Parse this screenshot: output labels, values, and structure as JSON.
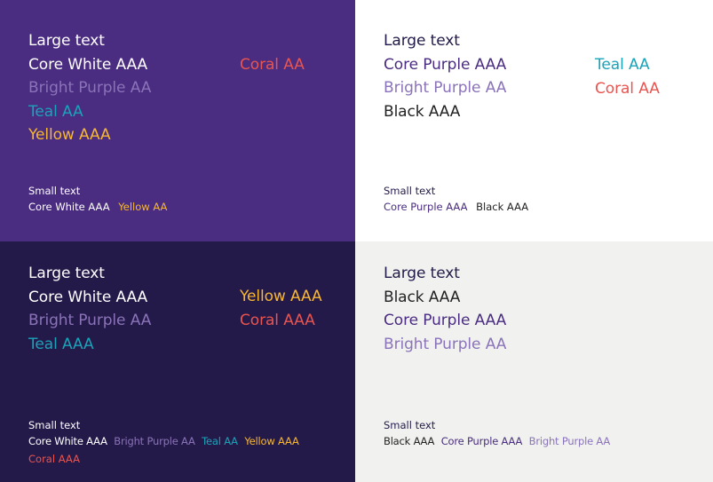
{
  "colors": {
    "core_purple": "#4a2c80",
    "dark_navy": "#241a4a",
    "white": "#ffffff",
    "light_grey": "#f1f2f0",
    "bright_purple": "#8a73b8",
    "teal": "#1aa3b8",
    "yellow": "#f7b733",
    "coral": "#e85550",
    "black": "#222222"
  },
  "panels": [
    {
      "large_heading": "Large text",
      "large_items": [
        "Core White AAA",
        "Bright Purple AA",
        "Teal AA",
        "Yellow AAA"
      ],
      "large_right": [
        "Coral AA"
      ],
      "small_heading": "Small text",
      "small_items": [
        "Core White AAA",
        "Yellow AA"
      ]
    },
    {
      "large_heading": "Large text",
      "large_items": [
        "Core Purple AAA",
        "Bright Purple AA",
        "Black AAA"
      ],
      "large_right": [
        "Teal AA",
        "Coral AA"
      ],
      "small_heading": "Small text",
      "small_items": [
        "Core Purple AAA",
        "Black AAA"
      ]
    },
    {
      "large_heading": "Large text",
      "large_items": [
        "Core White AAA",
        "Bright Purple AA",
        "Teal AAA"
      ],
      "large_right": [
        "Yellow AAA",
        "Coral AAA"
      ],
      "small_heading": "Small text",
      "small_items": [
        "Core White AAA",
        "Bright Purple AA",
        "Teal AA",
        "Yellow AAA"
      ],
      "small_items_line2": [
        "Coral AAA"
      ]
    },
    {
      "large_heading": "Large text",
      "large_items": [
        "Black AAA",
        "Core Purple AAA",
        "Bright Purple AA"
      ],
      "small_heading": "Small text",
      "small_items": [
        "Black AAA",
        "Core Purple AAA",
        "Bright Purple AA"
      ]
    }
  ]
}
